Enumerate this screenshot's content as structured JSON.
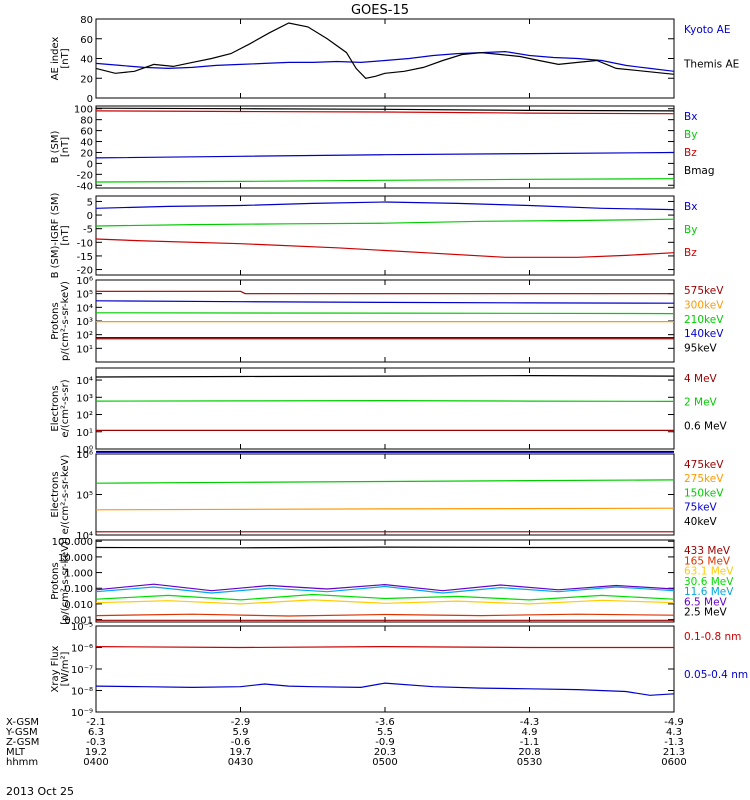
{
  "title": "GOES-15",
  "date_label": "2013 Oct 25",
  "chart_data": [
    {
      "type": "line",
      "ylabel": [
        "AE index",
        "[nT]"
      ],
      "ylim": [
        0,
        80
      ],
      "yscale": "linear",
      "yticks": [
        0,
        20,
        40,
        60,
        80
      ],
      "ytick_labels": [
        "0",
        "20",
        "40",
        "60",
        "80"
      ],
      "xlim": [
        0,
        120
      ],
      "series": [
        {
          "name": "Kyoto AE",
          "color": "#0000cc",
          "x": [
            0,
            5,
            10,
            15,
            20,
            25,
            30,
            35,
            40,
            45,
            50,
            55,
            60,
            65,
            70,
            75,
            80,
            85,
            90,
            95,
            100,
            105,
            110,
            115,
            120
          ],
          "values": [
            35,
            33,
            31,
            30,
            31,
            33,
            34,
            35,
            36,
            36,
            37,
            36,
            38,
            40,
            43,
            45,
            46,
            47,
            43,
            41,
            40,
            38,
            33,
            30,
            27
          ]
        },
        {
          "name": "Themis AE",
          "color": "#000000",
          "x": [
            0,
            4,
            8,
            12,
            16,
            20,
            24,
            28,
            32,
            36,
            40,
            44,
            48,
            52,
            54,
            56,
            58,
            60,
            64,
            68,
            72,
            76,
            80,
            84,
            88,
            92,
            96,
            100,
            104,
            108,
            112,
            116,
            120
          ],
          "values": [
            30,
            25,
            27,
            34,
            32,
            36,
            40,
            45,
            55,
            66,
            76,
            72,
            60,
            46,
            30,
            20,
            22,
            25,
            27,
            31,
            38,
            44,
            46,
            44,
            42,
            38,
            34,
            36,
            38,
            30,
            28,
            26,
            24
          ]
        }
      ]
    },
    {
      "type": "line",
      "ylabel": [
        "B (SM)",
        "[nT]"
      ],
      "ylim": [
        -45,
        105
      ],
      "yscale": "linear",
      "yticks": [
        -40,
        -20,
        0,
        20,
        40,
        60,
        80,
        100
      ],
      "ytick_labels": [
        "-40",
        "-20",
        "0",
        "20",
        "40",
        "60",
        "80",
        "100"
      ],
      "xlim": [
        0,
        120
      ],
      "series": [
        {
          "name": "Bx",
          "color": "#0000cc",
          "x": [
            0,
            30,
            60,
            90,
            120
          ],
          "values": [
            10,
            13,
            16,
            18,
            20
          ]
        },
        {
          "name": "By",
          "color": "#00cc00",
          "x": [
            0,
            30,
            60,
            90,
            120
          ],
          "values": [
            -34,
            -33,
            -31,
            -29,
            -28
          ]
        },
        {
          "name": "Bz",
          "color": "#cc0000",
          "x": [
            0,
            30,
            60,
            90,
            120
          ],
          "values": [
            96,
            95,
            94,
            92,
            91
          ]
        },
        {
          "name": "Bmag",
          "color": "#000000",
          "x": [
            0,
            30,
            60,
            90,
            120
          ],
          "values": [
            101,
            100,
            99,
            97,
            96
          ]
        }
      ]
    },
    {
      "type": "line",
      "ylabel": [
        "B (SM)-IGRF (SM)",
        "[nT]"
      ],
      "ylim": [
        -22,
        7
      ],
      "yscale": "linear",
      "yticks": [
        -20,
        -15,
        -10,
        -5,
        0,
        5
      ],
      "ytick_labels": [
        "-20",
        "-15",
        "-10",
        "-5",
        "0",
        "5"
      ],
      "xlim": [
        0,
        120
      ],
      "series": [
        {
          "name": "Bx",
          "color": "#0000cc",
          "x": [
            0,
            15,
            30,
            45,
            60,
            75,
            90,
            105,
            120
          ],
          "values": [
            2.5,
            3.2,
            3.5,
            4.3,
            4.8,
            4.3,
            3.5,
            2.5,
            2.0
          ]
        },
        {
          "name": "By",
          "color": "#00cc00",
          "x": [
            0,
            20,
            40,
            60,
            80,
            100,
            120
          ],
          "values": [
            -4,
            -3.5,
            -3.2,
            -3.0,
            -2.3,
            -2.0,
            -1.5
          ]
        },
        {
          "name": "Bz",
          "color": "#cc0000",
          "x": [
            0,
            10,
            30,
            50,
            70,
            85,
            100,
            110,
            120
          ],
          "values": [
            -8.8,
            -9.5,
            -10.5,
            -12,
            -14,
            -15.5,
            -15.5,
            -14.8,
            -13.8
          ]
        }
      ]
    },
    {
      "type": "line",
      "ylabel": [
        "Protons",
        "p/(cm²-s-sr-keV)"
      ],
      "ylim": [
        1,
        1000000
      ],
      "yscale": "log",
      "yticks": [
        10,
        100,
        1000,
        10000,
        100000,
        1000000
      ],
      "ytick_labels": [
        "10¹",
        "10²",
        "10³",
        "10⁴",
        "10⁵",
        "10⁶"
      ],
      "xlim": [
        0,
        120
      ],
      "series": [
        {
          "name": "575keV",
          "color": "#990000",
          "x": [
            0,
            30,
            31,
            120
          ],
          "values": [
            150000,
            150000,
            100000,
            100000
          ]
        },
        {
          "name": "300keV",
          "color": "#ff9900",
          "x": [
            0,
            60,
            120
          ],
          "values": [
            900,
            900,
            900
          ]
        },
        {
          "name": "210keV",
          "color": "#00cc00",
          "x": [
            0,
            60,
            120
          ],
          "values": [
            4000,
            3800,
            3500
          ]
        },
        {
          "name": "140keV",
          "color": "#0000cc",
          "x": [
            0,
            30,
            60,
            90,
            120
          ],
          "values": [
            30000,
            26000,
            23000,
            21000,
            20000
          ]
        },
        {
          "name": "95keV",
          "color": "#000000",
          "x": [
            0,
            60,
            120
          ],
          "values": [
            60,
            60,
            60
          ]
        }
      ],
      "extra_series": [
        {
          "color": "#990000",
          "x": [
            0,
            60,
            120
          ],
          "values": [
            50,
            50,
            50
          ]
        }
      ]
    },
    {
      "type": "line",
      "ylabel": [
        "Electrons",
        "e/(cm²-s-sr)"
      ],
      "ylim": [
        1,
        50000
      ],
      "yscale": "log",
      "yticks": [
        1,
        10,
        100,
        1000,
        10000
      ],
      "ytick_labels": [
        "10⁰",
        "10¹",
        "10²",
        "10³",
        "10⁴"
      ],
      "xlim": [
        0,
        120
      ],
      "series": [
        {
          "name": "4 MeV",
          "color": "#990000",
          "x": [
            0,
            30,
            60,
            90,
            120
          ],
          "values": [
            12,
            12,
            12,
            12,
            12
          ]
        },
        {
          "name": "2 MeV",
          "color": "#00cc00",
          "x": [
            0,
            30,
            60,
            90,
            120
          ],
          "values": [
            600,
            620,
            640,
            600,
            580
          ]
        },
        {
          "name": "0.6 MeV",
          "color": "#000000",
          "x": [
            0,
            30,
            60,
            90,
            120
          ],
          "values": [
            15000,
            16000,
            17000,
            18000,
            17000
          ]
        }
      ]
    },
    {
      "type": "line",
      "ylabel": [
        "Electrons",
        "e/(cm²-s-sr-keV)"
      ],
      "ylim": [
        10000,
        1000000
      ],
      "yscale": "log",
      "yticks": [
        10000,
        100000,
        1000000
      ],
      "ytick_labels": [
        "10⁴",
        "10⁵",
        "10⁶"
      ],
      "xlim": [
        0,
        120
      ],
      "series": [
        {
          "name": "475keV",
          "color": "#990000",
          "x": [
            0,
            120
          ],
          "values": [
            12000,
            12000
          ]
        },
        {
          "name": "275keV",
          "color": "#ff9900",
          "x": [
            0,
            60,
            120
          ],
          "values": [
            42000,
            44000,
            46000
          ]
        },
        {
          "name": "150keV",
          "color": "#00cc00",
          "x": [
            0,
            30,
            60,
            90,
            120
          ],
          "values": [
            190000,
            200000,
            210000,
            220000,
            230000
          ]
        },
        {
          "name": "75keV",
          "color": "#0000cc",
          "x": [
            0,
            120
          ],
          "values": [
            1100000,
            1100000
          ]
        },
        {
          "name": "40keV",
          "color": "#000000",
          "x": [
            0,
            120
          ],
          "values": [
            1150000,
            1150000
          ]
        }
      ]
    },
    {
      "type": "line",
      "ylabel": [
        "Protons",
        "[p/(cm²-s-sr-keV)]"
      ],
      "ylim": [
        0.0007,
        120
      ],
      "yscale": "log",
      "yticks": [
        0.001,
        0.01,
        0.1,
        1,
        10,
        100
      ],
      "ytick_labels": [
        "0.001",
        "0.010",
        "0.100",
        "1.000",
        "10.000",
        "100.000"
      ],
      "xlim": [
        0,
        120
      ],
      "series": [
        {
          "name": "433 MeV",
          "color": "#990000",
          "x": [
            0,
            120
          ],
          "values": [
            0.0009,
            0.0009
          ]
        },
        {
          "name": "165 MeV",
          "color": "#dd3300",
          "x": [
            0,
            20,
            40,
            60,
            80,
            100,
            120
          ],
          "values": [
            0.0018,
            0.0022,
            0.0017,
            0.0021,
            0.0018,
            0.0022,
            0.0019
          ]
        },
        {
          "name": "63.1 MeV",
          "color": "#ffcc00",
          "x": [
            0,
            15,
            30,
            45,
            60,
            75,
            90,
            105,
            120
          ],
          "values": [
            0.012,
            0.016,
            0.01,
            0.018,
            0.011,
            0.015,
            0.01,
            0.017,
            0.012
          ]
        },
        {
          "name": "30.6 MeV",
          "color": "#00dd00",
          "x": [
            0,
            15,
            30,
            45,
            60,
            75,
            90,
            105,
            120
          ],
          "values": [
            0.02,
            0.035,
            0.018,
            0.04,
            0.022,
            0.03,
            0.018,
            0.035,
            0.02
          ]
        },
        {
          "name": "11.6 MeV",
          "color": "#00aadd",
          "x": [
            0,
            12,
            24,
            36,
            48,
            60,
            72,
            84,
            96,
            108,
            120
          ],
          "values": [
            0.06,
            0.12,
            0.05,
            0.1,
            0.06,
            0.13,
            0.05,
            0.11,
            0.06,
            0.12,
            0.07
          ]
        },
        {
          "name": "6.5 MeV",
          "color": "#6600cc",
          "x": [
            0,
            12,
            24,
            36,
            48,
            60,
            72,
            84,
            96,
            108,
            120
          ],
          "values": [
            0.08,
            0.18,
            0.07,
            0.15,
            0.09,
            0.17,
            0.07,
            0.16,
            0.08,
            0.15,
            0.09
          ]
        },
        {
          "name": "2.5 MeV",
          "color": "#000000",
          "x": [
            0,
            30,
            60,
            90,
            120
          ],
          "values": [
            40,
            38,
            42,
            40,
            40
          ]
        }
      ]
    },
    {
      "type": "line",
      "ylabel": [
        "Xray Flux",
        "[W/m²]"
      ],
      "ylim": [
        1e-09,
        1e-05
      ],
      "yscale": "log",
      "yticks": [
        1e-09,
        1e-08,
        1e-07,
        1e-06,
        1e-05
      ],
      "ytick_labels": [
        "10⁻⁹",
        "10⁻⁸",
        "10⁻⁷",
        "10⁻⁶",
        "10⁻⁵"
      ],
      "xlim": [
        0,
        120
      ],
      "series": [
        {
          "name": "0.1-0.8 nm",
          "color": "#cc0000",
          "x": [
            0,
            30,
            60,
            90,
            120
          ],
          "values": [
            1.1e-06,
            1e-06,
            1.1e-06,
            1e-06,
            1e-06
          ]
        },
        {
          "name": "0.05-0.4 nm",
          "color": "#0000cc",
          "x": [
            0,
            10,
            20,
            30,
            35,
            40,
            45,
            55,
            60,
            70,
            80,
            90,
            100,
            110,
            115,
            120
          ],
          "values": [
            1.6e-08,
            1.5e-08,
            1.4e-08,
            1.5e-08,
            2e-08,
            1.6e-08,
            1.5e-08,
            1.4e-08,
            2.2e-08,
            1.5e-08,
            1.3e-08,
            1.2e-08,
            1.1e-08,
            9e-09,
            6e-09,
            7e-09
          ]
        }
      ]
    }
  ],
  "x_axis": {
    "ticks": [
      0,
      30,
      60,
      90,
      120
    ],
    "rows": [
      {
        "label": "X-GSM",
        "values": [
          "-2.1",
          "-2.9",
          "-3.6",
          "-4.3",
          "-4.9"
        ]
      },
      {
        "label": "Y-GSM",
        "values": [
          "6.3",
          "5.9",
          "5.5",
          "4.9",
          "4.3"
        ]
      },
      {
        "label": "Z-GSM",
        "values": [
          "-0.3",
          "-0.6",
          "-0.9",
          "-1.1",
          "-1.3"
        ]
      },
      {
        "label": "MLT",
        "values": [
          "19.2",
          "19.7",
          "20.3",
          "20.8",
          "21.3"
        ]
      },
      {
        "label": "hhmm",
        "values": [
          "0400",
          "0430",
          "0500",
          "0530",
          "0600"
        ]
      }
    ]
  }
}
